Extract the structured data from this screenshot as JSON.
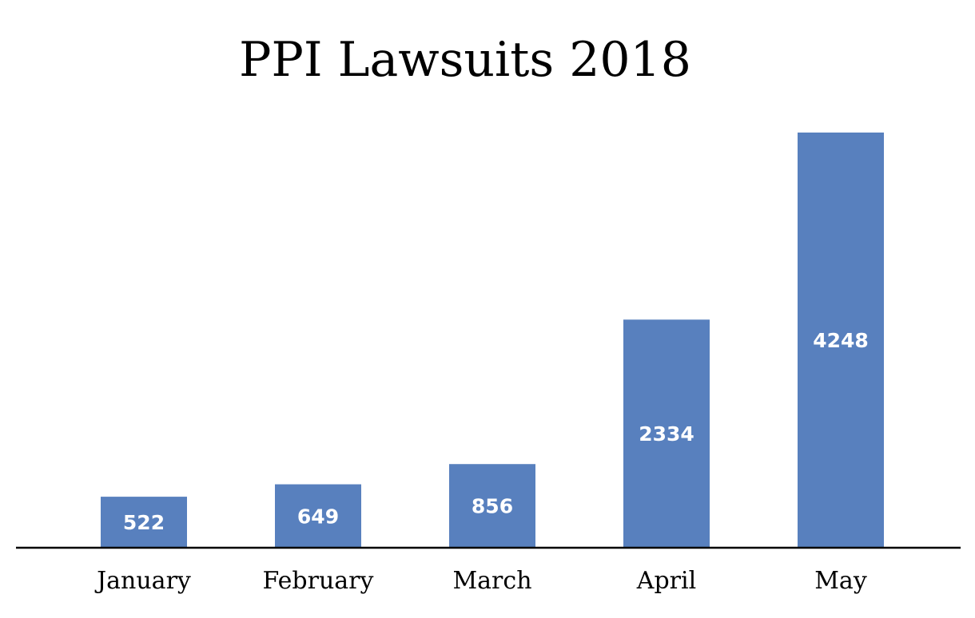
{
  "chart_data": {
    "type": "bar",
    "title": "PPI Lawsuits 2018",
    "categories": [
      "January",
      "February",
      "March",
      "April",
      "May"
    ],
    "values": [
      522,
      649,
      856,
      2334,
      4248
    ],
    "xlabel": "",
    "ylabel": "",
    "ylim": [
      0,
      4248
    ],
    "grid": false,
    "legend": "none",
    "colors": {
      "bar": "#5880be",
      "axis": "#000000",
      "value_label": "#ffffff"
    }
  }
}
